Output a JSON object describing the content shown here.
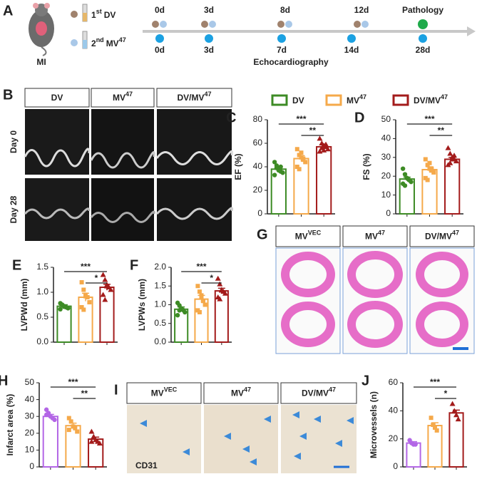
{
  "timeline": {
    "label": "A",
    "model": "MI",
    "treatment1": [
      "1",
      "st",
      "DV"
    ],
    "treatment2": [
      "2",
      "nd",
      "MV",
      "47"
    ],
    "top": [
      "0d",
      "3d",
      "8d",
      "12d",
      "Pathology"
    ],
    "bottom": [
      "0d",
      "3d",
      "7d",
      "14d",
      "28d"
    ],
    "bottom_title": "Echocardiography"
  },
  "panel_b": {
    "label": "B",
    "headers": [
      [
        "DV"
      ],
      [
        "MV",
        "47"
      ],
      [
        "DV/MV",
        "47"
      ]
    ],
    "rows": [
      "Day 0",
      "Day 28"
    ]
  },
  "panel_g": {
    "label": "G",
    "headers": [
      [
        "MV",
        "VEC"
      ],
      [
        "MV",
        "47"
      ],
      [
        "DV/MV",
        "47"
      ]
    ]
  },
  "panel_i": {
    "label": "I",
    "headers": [
      [
        "MV",
        "VEC"
      ],
      [
        "MV",
        "47"
      ],
      [
        "DV/MV",
        "47"
      ]
    ],
    "stain": "CD31"
  },
  "legend": [
    {
      "name": [
        "DV"
      ],
      "color": "#3d8b25"
    },
    {
      "name": [
        "MV",
        "47"
      ],
      "color": "#f5a94a"
    },
    {
      "name": [
        "DV/MV",
        "47"
      ],
      "color": "#a31b1b"
    }
  ],
  "chart_data": [
    {
      "type": "bar",
      "label": "C",
      "ylabel": "EF (%)",
      "ylim": [
        0,
        80
      ],
      "yticks": [
        0,
        20,
        40,
        60,
        80
      ],
      "significance": [
        "***",
        "**"
      ],
      "series": [
        {
          "color": "#3d8b25",
          "marker": "circle",
          "values": [
            38
          ],
          "errors": [
            2
          ],
          "points": [
            44,
            41,
            38,
            36,
            35,
            33,
            39,
            37,
            40
          ]
        },
        {
          "color": "#f5a94a",
          "marker": "square",
          "values": [
            47
          ],
          "errors": [
            2.5
          ],
          "points": [
            55,
            50,
            48,
            46,
            44,
            40,
            38,
            52,
            47
          ]
        },
        {
          "color": "#a31b1b",
          "marker": "triangle",
          "values": [
            57
          ],
          "errors": [
            2
          ],
          "points": [
            64,
            60,
            58,
            57,
            55,
            53,
            56,
            54,
            59
          ]
        }
      ]
    },
    {
      "type": "bar",
      "label": "D",
      "ylabel": "FS (%)",
      "ylim": [
        0,
        50
      ],
      "yticks": [
        0,
        10,
        20,
        30,
        40,
        50
      ],
      "significance": [
        "***",
        "**"
      ],
      "series": [
        {
          "color": "#3d8b25",
          "marker": "circle",
          "values": [
            18.5
          ],
          "errors": [
            1
          ],
          "points": [
            24,
            21,
            19,
            18,
            17,
            16,
            15,
            19,
            18
          ]
        },
        {
          "color": "#f5a94a",
          "marker": "square",
          "values": [
            23.5
          ],
          "errors": [
            1.5
          ],
          "points": [
            29,
            26,
            24,
            23,
            22,
            19,
            18,
            27,
            24
          ]
        },
        {
          "color": "#a31b1b",
          "marker": "triangle",
          "values": [
            29
          ],
          "errors": [
            1
          ],
          "points": [
            35,
            32,
            30,
            29,
            28,
            26,
            27,
            29,
            31
          ]
        }
      ]
    },
    {
      "type": "bar",
      "label": "E",
      "ylabel": "LVPWd (mm)",
      "ylim": [
        0,
        1.5
      ],
      "yticks": [
        {
          "value": 0,
          "label": "0.0"
        },
        {
          "value": 0.5,
          "label": "0.5"
        },
        {
          "value": 1,
          "label": "1.0"
        },
        {
          "value": 1.5,
          "label": "1.5"
        }
      ],
      "significance": [
        "***",
        "*"
      ],
      "series": [
        {
          "color": "#3d8b25",
          "marker": "circle",
          "values": [
            0.72
          ],
          "errors": [
            0.03
          ],
          "points": [
            0.78,
            0.75,
            0.72,
            0.7,
            0.68,
            0.66,
            0.74,
            0.71
          ]
        },
        {
          "color": "#f5a94a",
          "marker": "square",
          "values": [
            0.9
          ],
          "errors": [
            0.08
          ],
          "points": [
            1.2,
            1.05,
            0.95,
            0.9,
            0.8,
            0.7,
            0.65,
            0.92
          ]
        },
        {
          "color": "#a31b1b",
          "marker": "triangle",
          "values": [
            1.1
          ],
          "errors": [
            0.06
          ],
          "points": [
            1.35,
            1.25,
            1.15,
            1.1,
            1.05,
            0.95,
            0.85,
            1.12
          ]
        }
      ]
    },
    {
      "type": "bar",
      "label": "F",
      "ylabel": "LVPWs (mm)",
      "ylim": [
        0,
        2
      ],
      "yticks": [
        {
          "value": 0,
          "label": "0.0"
        },
        {
          "value": 0.5,
          "label": "0.5"
        },
        {
          "value": 1,
          "label": "1.0"
        },
        {
          "value": 1.5,
          "label": "1.5"
        },
        {
          "value": 2,
          "label": "2.0"
        }
      ],
      "significance": [
        "***",
        "*"
      ],
      "series": [
        {
          "color": "#3d8b25",
          "marker": "circle",
          "values": [
            0.88
          ],
          "errors": [
            0.06
          ],
          "points": [
            1.05,
            0.98,
            0.9,
            0.86,
            0.8,
            0.72,
            0.85,
            0.9
          ]
        },
        {
          "color": "#f5a94a",
          "marker": "square",
          "values": [
            1.15
          ],
          "errors": [
            0.1
          ],
          "points": [
            1.5,
            1.35,
            1.2,
            1.1,
            1.0,
            0.85,
            0.8,
            1.25
          ]
        },
        {
          "color": "#a31b1b",
          "marker": "triangle",
          "values": [
            1.37
          ],
          "errors": [
            0.07
          ],
          "points": [
            1.7,
            1.55,
            1.4,
            1.35,
            1.3,
            1.2,
            1.15,
            1.38
          ]
        }
      ]
    },
    {
      "type": "bar",
      "label": "H",
      "ylabel": "Infarct area (%)",
      "ylim": [
        0,
        50
      ],
      "yticks": [
        0,
        10,
        20,
        30,
        40,
        50
      ],
      "significance": [
        "***",
        "**"
      ],
      "series": [
        {
          "color": "#b366e6",
          "marker": "circle",
          "values": [
            30
          ],
          "errors": [
            1.2
          ],
          "points": [
            34,
            32,
            30,
            29,
            28,
            31
          ]
        },
        {
          "color": "#f5a94a",
          "marker": "square",
          "values": [
            24.5
          ],
          "errors": [
            1.5
          ],
          "points": [
            29,
            27,
            24,
            23,
            21,
            22
          ]
        },
        {
          "color": "#a31b1b",
          "marker": "triangle",
          "values": [
            16.5
          ],
          "errors": [
            1.2
          ],
          "points": [
            21,
            18,
            16,
            15,
            14,
            15
          ]
        }
      ]
    },
    {
      "type": "bar",
      "label": "J",
      "ylabel": "Microvessels (n)",
      "ylim": [
        0,
        60
      ],
      "yticks": [
        0,
        20,
        40,
        60
      ],
      "significance": [
        "***",
        "*"
      ],
      "series": [
        {
          "color": "#b366e6",
          "marker": "circle",
          "values": [
            17
          ],
          "errors": [
            1
          ],
          "points": [
            19,
            17,
            16,
            16
          ]
        },
        {
          "color": "#f5a94a",
          "marker": "square",
          "values": [
            29.5
          ],
          "errors": [
            2
          ],
          "points": [
            35,
            30,
            28,
            26
          ]
        },
        {
          "color": "#a31b1b",
          "marker": "triangle",
          "values": [
            38.5
          ],
          "errors": [
            2
          ],
          "points": [
            45,
            40,
            37,
            34
          ]
        }
      ]
    }
  ]
}
